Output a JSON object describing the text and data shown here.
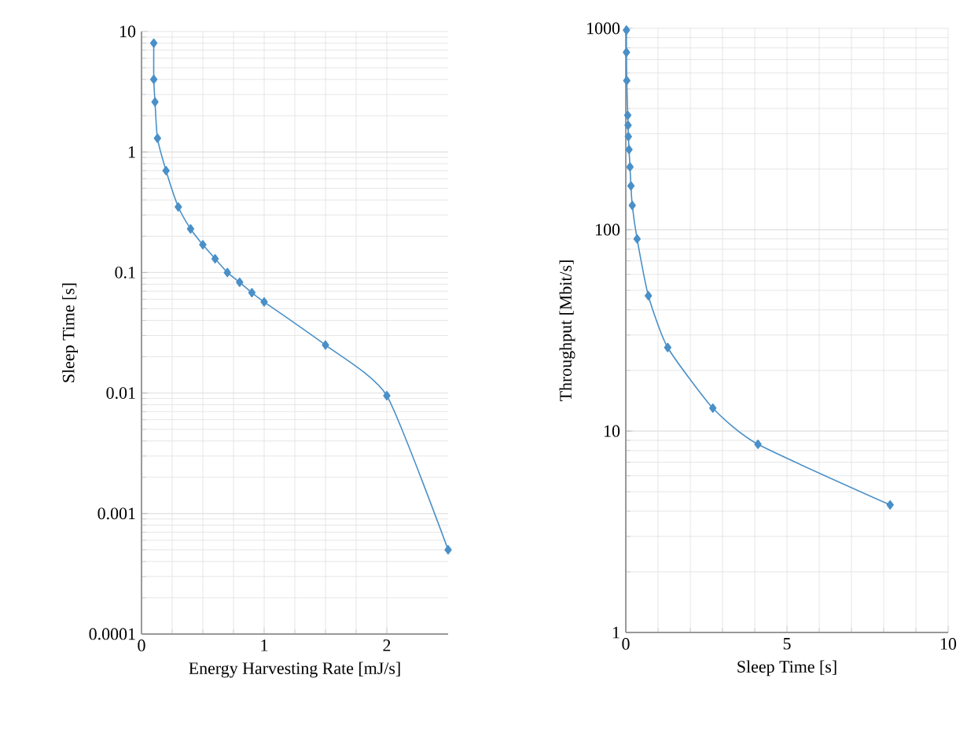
{
  "chart_data": [
    {
      "type": "line",
      "xlabel": "Energy Harvesting Rate [mJ/s]",
      "ylabel": "Sleep Time [s]",
      "log": "y",
      "grid": true,
      "marker": "diamond",
      "line_style": "solid",
      "xlim": [
        0,
        2.5
      ],
      "ylim": [
        0.0001,
        10
      ],
      "xticks": [
        0,
        1,
        2
      ],
      "yticks": [
        {
          "value": 0.0001,
          "label": "0.0001"
        },
        {
          "value": 0.001,
          "label": "0.001"
        },
        {
          "value": 0.01,
          "label": "0.01"
        },
        {
          "value": 0.1,
          "label": "0.1"
        },
        1,
        10
      ],
      "series": [
        {
          "color": "#4a90c8",
          "x": [
            0.1,
            0.1,
            0.11,
            0.13,
            0.2,
            0.3,
            0.4,
            0.5,
            0.6,
            0.7,
            0.8,
            0.9,
            1.0,
            1.5,
            2.0,
            2.5
          ],
          "values": [
            8,
            4,
            2.6,
            1.3,
            0.7,
            0.35,
            0.23,
            0.17,
            0.13,
            0.1,
            0.083,
            0.068,
            0.057,
            0.025,
            0.0095,
            0.0005
          ]
        }
      ]
    },
    {
      "type": "line",
      "xlabel": "Sleep Time [s]",
      "ylabel": "Throughput [Mbit/s]",
      "log": "y",
      "grid": true,
      "marker": "diamond",
      "line_style": "solid",
      "xlim": [
        0,
        10
      ],
      "ylim": [
        1,
        1000
      ],
      "xticks": [
        0,
        5,
        10
      ],
      "yticks": [
        1,
        10,
        100,
        1000
      ],
      "series": [
        {
          "color": "#4a90c8",
          "x": [
            0.02,
            0.02,
            0.03,
            0.06,
            0.07,
            0.08,
            0.1,
            0.13,
            0.16,
            0.2,
            0.35,
            0.7,
            1.3,
            2.7,
            4.1,
            8.2
          ],
          "values": [
            980,
            760,
            550,
            370,
            330,
            290,
            250,
            205,
            165,
            132,
            90,
            47,
            26,
            13,
            8.6,
            4.3
          ]
        }
      ]
    }
  ]
}
